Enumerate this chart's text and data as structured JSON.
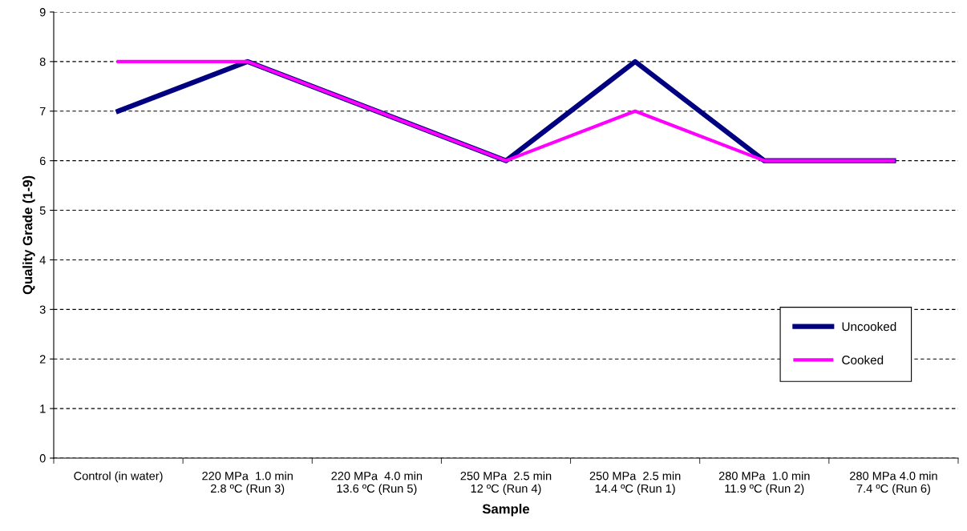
{
  "chart_data": {
    "type": "line",
    "xlabel": "Sample",
    "ylabel": "Quality Grade (1-9)",
    "categories": [
      "Control (in water)",
      "220 MPa  1.0 min\n2.8 ºC (Run 3)",
      "220 MPa  4.0 min\n13.6 ºC (Run 5)",
      "250 MPa  2.5 min\n12 ºC (Run 4)",
      "250 MPa  2.5 min\n14.4 ºC (Run 1)",
      "280 MPa  1.0 min\n11.9 ºC (Run 2)",
      "280 MPa 4.0 min\n7.4 ºC (Run 6)"
    ],
    "series": [
      {
        "name": "Uncooked",
        "color": "#000080",
        "values": [
          7,
          8,
          7,
          6,
          8,
          6,
          6
        ]
      },
      {
        "name": "Cooked",
        "color": "#ff00ff",
        "values": [
          8,
          8,
          7,
          6,
          7,
          6,
          6
        ]
      }
    ],
    "ylim": [
      0,
      9
    ],
    "yticks": [
      0,
      1,
      2,
      3,
      4,
      5,
      6,
      7,
      8,
      9
    ],
    "grid": "y",
    "legend": "right",
    "marker": "none",
    "line_style": "solid"
  }
}
